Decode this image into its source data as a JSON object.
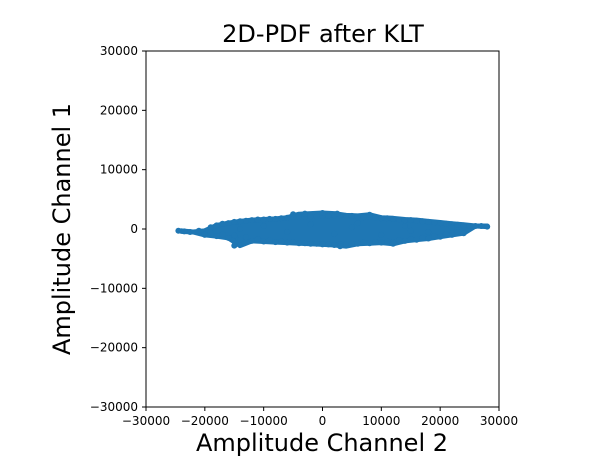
{
  "chart_data": {
    "type": "scatter",
    "title": "2D-PDF after KLT",
    "xlabel": "Amplitude Channel 2",
    "ylabel": "Amplitude Channel 1",
    "xlim": [
      -30000,
      30000
    ],
    "ylim": [
      -30000,
      30000
    ],
    "xticks": [
      -30000,
      -20000,
      -10000,
      0,
      10000,
      20000,
      30000
    ],
    "xtick_labels": [
      "−30000",
      "−20000",
      "−10000",
      "0",
      "10000",
      "20000",
      "30000"
    ],
    "yticks": [
      -30000,
      -20000,
      -10000,
      0,
      10000,
      20000,
      30000
    ],
    "ytick_labels": [
      "−30000",
      "−20000",
      "−10000",
      "0",
      "10000",
      "20000",
      "30000"
    ],
    "grid": false,
    "color": "#1f77b4",
    "series": [
      {
        "x": [
          -24500,
          -23500,
          -22500,
          -21000,
          -20000,
          -19000,
          -18000,
          -17000,
          -16000,
          -15000,
          -14000,
          -13000,
          -12000,
          -11000,
          -10000,
          -9000,
          -8000,
          -7000,
          -6000,
          -5000,
          -4000,
          -3000,
          -2000,
          -1000,
          0,
          1000,
          2000,
          3000,
          4000,
          5000,
          6000,
          7000,
          8000,
          9000,
          10000,
          11000,
          12000,
          13000,
          14000,
          15000,
          16000,
          17000,
          18000,
          19000,
          20000,
          21000,
          22000,
          23000,
          24000,
          25000,
          26000,
          27000,
          28000,
          -20000,
          -18000,
          -16000,
          -14000,
          -12000,
          -10000,
          -8000,
          -6000,
          -4000,
          -2000,
          0,
          2000,
          4000,
          6000,
          8000,
          10000,
          12000,
          14000,
          16000,
          18000,
          20000,
          22000,
          24000,
          -19000,
          -17000,
          -15000,
          -13000,
          -11000,
          -9000,
          -7000,
          -5000,
          -3000,
          -1000,
          1000,
          3000,
          5000,
          7000,
          9000,
          11000,
          13000,
          15000,
          17000,
          19000,
          21000,
          23000,
          -14000,
          -10000,
          -6000,
          -2000,
          2000,
          6000,
          10000,
          14000,
          18000,
          22000,
          -15000,
          -5000,
          5000,
          15000,
          0,
          2500,
          3000,
          -3000,
          8000,
          12000
        ],
        "y": [
          -300,
          -400,
          -500,
          -300,
          -900,
          300,
          600,
          900,
          1000,
          1200,
          1300,
          1400,
          1500,
          1600,
          1600,
          1700,
          1700,
          1800,
          1900,
          2000,
          2000,
          2000,
          2100,
          2100,
          2200,
          2200,
          2300,
          2300,
          2200,
          2200,
          2100,
          2000,
          2000,
          1900,
          1800,
          1800,
          1700,
          1600,
          1500,
          1500,
          1400,
          1300,
          1200,
          1100,
          1000,
          900,
          800,
          700,
          600,
          500,
          500,
          500,
          400,
          -1000,
          -1200,
          -1500,
          -1800,
          -2000,
          -2100,
          -2200,
          -2300,
          -2400,
          -2500,
          -2600,
          -2700,
          -2600,
          -2500,
          -2400,
          -2300,
          -2200,
          -2000,
          -1800,
          -1600,
          -1300,
          -1000,
          -700,
          -600,
          -900,
          -1100,
          -1400,
          -1700,
          -1900,
          -2100,
          -2200,
          -2400,
          -2500,
          -2600,
          -2600,
          -2500,
          -2300,
          -2200,
          -2100,
          -1900,
          -1700,
          -1500,
          -1200,
          -900,
          -500,
          0,
          500,
          -500,
          800,
          -800,
          1000,
          -1000,
          500,
          -500,
          200,
          -2800,
          2500,
          300,
          -300,
          2700,
          2600,
          -2900,
          2600,
          2400,
          -2500
        ]
      }
    ]
  }
}
